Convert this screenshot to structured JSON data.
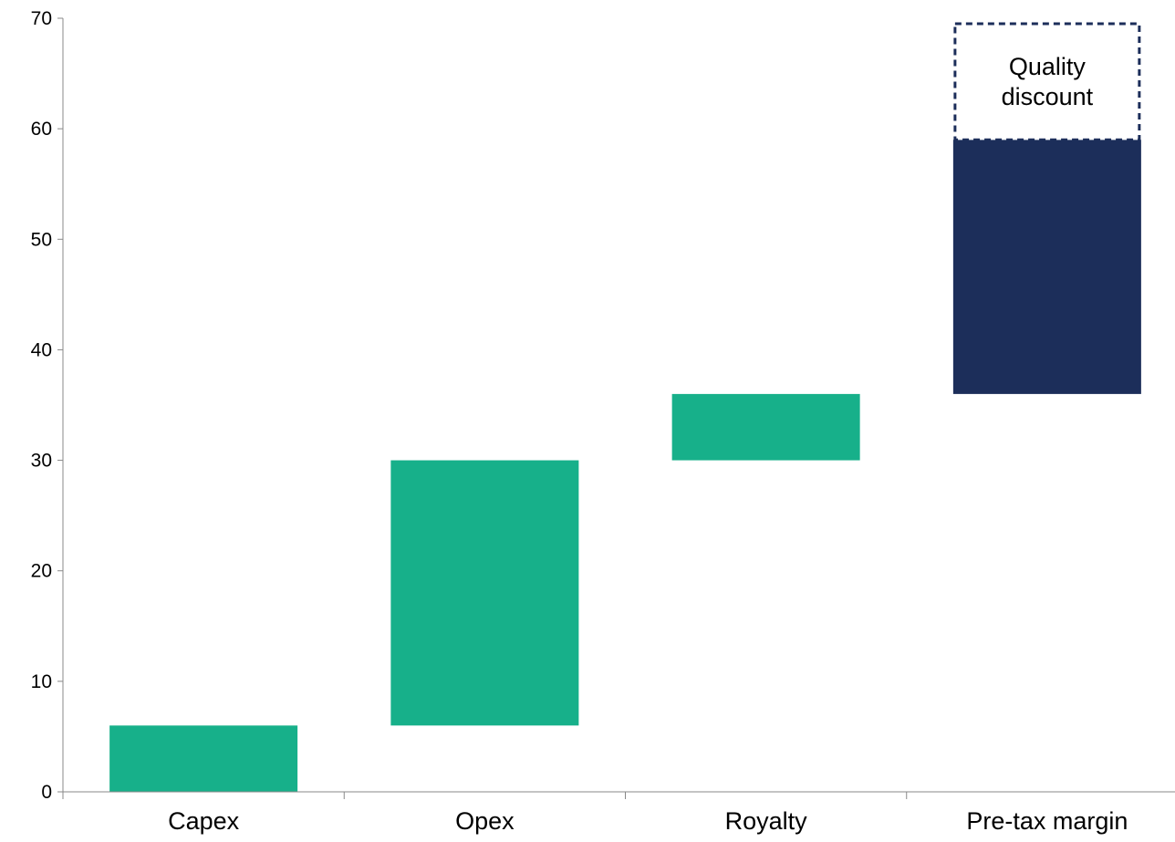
{
  "chart_data": {
    "type": "bar",
    "subtype": "waterfall",
    "title": "",
    "xlabel": "",
    "ylabel": "",
    "ylim": [
      0,
      70
    ],
    "yticks": [
      0,
      10,
      20,
      30,
      40,
      50,
      60,
      70
    ],
    "grid": false,
    "legend": "none",
    "categories": [
      "Capex",
      "Opex",
      "Royalty",
      "Pre-tax margin"
    ],
    "bars": [
      {
        "category": "Capex",
        "start": 0,
        "end": 6,
        "color": "#17B08A"
      },
      {
        "category": "Opex",
        "start": 6,
        "end": 30,
        "color": "#17B08A"
      },
      {
        "category": "Royalty",
        "start": 30,
        "end": 36,
        "color": "#17B08A"
      },
      {
        "category": "Pre-tax margin",
        "start": 36,
        "end": 59,
        "color": "#1C2E5A"
      }
    ],
    "annotations": [
      {
        "category": "Pre-tax margin",
        "start": 59,
        "end": 69.5,
        "style": "dashed-outline",
        "color": "#1C2E5A",
        "label_lines": [
          "Quality",
          "discount"
        ]
      }
    ]
  }
}
